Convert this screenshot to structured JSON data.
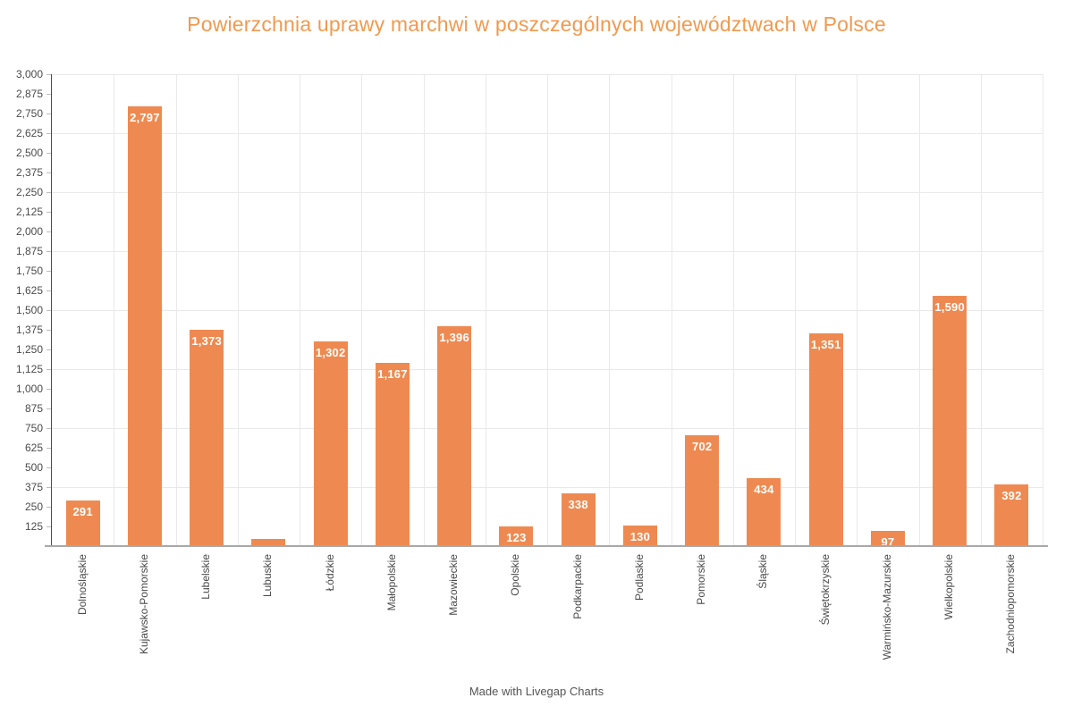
{
  "title": "Powierzchnia uprawy marchwi w poszczególnych województwach w Polsce",
  "footer": "Made with Livegap Charts",
  "colors": {
    "bar": "#ee8a51",
    "title": "#f2994e",
    "axis_y_line": "#4d4d4d",
    "axis_x_line": "#a8a8a8",
    "gridline": "#e9e9e9",
    "tick_label": "#4a4a4a",
    "value_label": "#ffffff",
    "footer_text": "#555555"
  },
  "chart_data": {
    "type": "bar",
    "title": "Powierzchnia uprawy marchwi w poszczególnych województwach w Polsce",
    "categories": [
      "Dolnośląskie",
      "Kujawsko-Pomorskie",
      "Lubelskie",
      "Lubuskie",
      "Łódzkie",
      "Małopolskie",
      "Mazowieckie",
      "Opolskie",
      "Podkarpackie",
      "Podlaskie",
      "Pomorskie",
      "Śląskie",
      "Świętokrzyskie",
      "Warmińsko-Mazurskie",
      "Wielkopolskie",
      "Zachodniopomorskie"
    ],
    "values": [
      291,
      2797,
      1373,
      44,
      1302,
      1167,
      1396,
      123,
      338,
      130,
      702,
      434,
      1351,
      97,
      1590,
      392
    ],
    "xlabel": "",
    "ylabel": "",
    "ylim": [
      0,
      3000
    ],
    "ytick_step": 125,
    "ytick_labels": [
      "125",
      "250",
      "375",
      "500",
      "625",
      "750",
      "875",
      "1,000",
      "1,125",
      "1,250",
      "1,375",
      "1,500",
      "1,625",
      "1,750",
      "1,875",
      "2,000",
      "2,125",
      "2,250",
      "2,375",
      "2,500",
      "2,625",
      "2,750",
      "2,875",
      "3,000"
    ],
    "gridline_step": 375,
    "grid": true,
    "legend_position": "none",
    "value_labels": "inside-top-white-bold, thousands separator, clipped to bar"
  }
}
